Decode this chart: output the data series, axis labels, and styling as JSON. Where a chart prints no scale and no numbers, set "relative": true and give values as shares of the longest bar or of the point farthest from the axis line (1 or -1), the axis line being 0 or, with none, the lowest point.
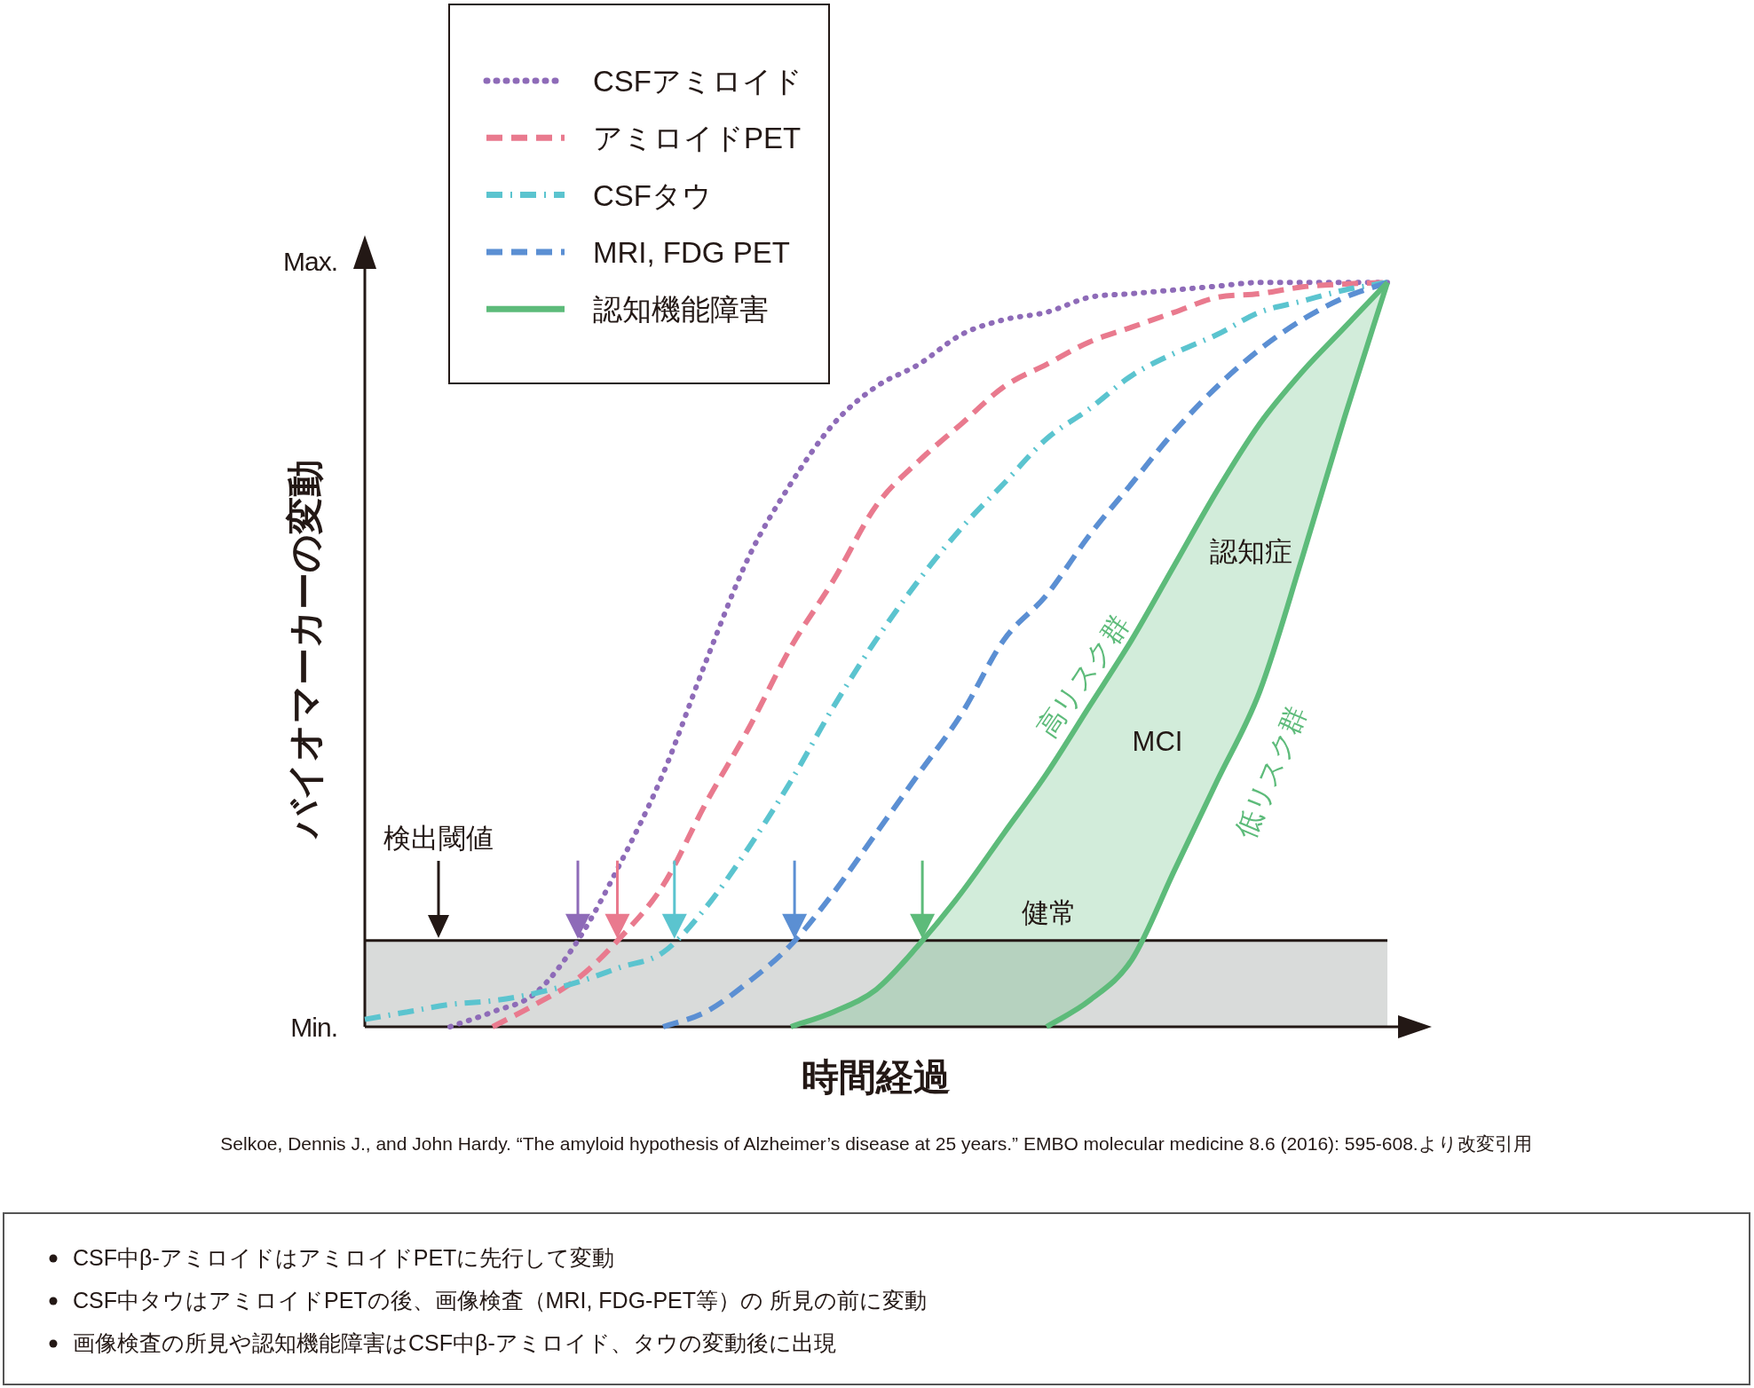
{
  "chart_data": {
    "type": "line",
    "ylabel": "バイオマーカーの変動",
    "xlabel": "時間経過",
    "categories": [
      null,
      null,
      null,
      null,
      null,
      null,
      null,
      null,
      null,
      null,
      null,
      null,
      null,
      null,
      null,
      null,
      null,
      null,
      null,
      null,
      null,
      null,
      null,
      null,
      null
    ],
    "relative": true,
    "series": [
      {
        "name": "CSFアミロイド",
        "color": "#8e6bb8",
        "line_style": "dotted",
        "values": [
          null,
          null,
          0,
          0.02,
          0.045,
          0.116,
          0.22,
          0.34,
          0.49,
          0.63,
          0.73,
          0.81,
          0.86,
          0.89,
          0.93,
          0.95,
          0.96,
          0.98,
          0.985,
          0.99,
          0.995,
          1,
          1,
          1,
          1
        ]
      },
      {
        "name": "アミロイドPET",
        "color": "#e97a8e",
        "line_style": "dashed",
        "values": [
          null,
          null,
          null,
          0,
          0.03,
          0.065,
          0.12,
          0.19,
          0.3,
          0.4,
          0.51,
          0.6,
          0.7,
          0.76,
          0.81,
          0.86,
          0.89,
          0.92,
          0.94,
          0.96,
          0.98,
          0.985,
          0.994,
          0.998,
          1
        ]
      },
      {
        "name": "CSFタウ",
        "color": "#5bc4cf",
        "line_style": "dashdot",
        "values": [
          0.01,
          0.02,
          0.03,
          0.035,
          0.045,
          0.06,
          0.08,
          0.1,
          0.16,
          0.24,
          0.33,
          0.43,
          0.52,
          0.6,
          0.67,
          0.73,
          0.79,
          0.83,
          0.875,
          0.905,
          0.93,
          0.96,
          0.975,
          0.99,
          1
        ]
      },
      {
        "name": "MRI, FDG PET",
        "color": "#5b8fd3",
        "line_style": "dashed",
        "values": [
          null,
          null,
          null,
          null,
          null,
          null,
          null,
          0,
          0.02,
          0.06,
          0.11,
          0.18,
          0.26,
          0.34,
          0.42,
          0.52,
          0.58,
          0.66,
          0.73,
          0.8,
          0.86,
          0.91,
          0.95,
          0.98,
          1
        ]
      },
      {
        "name": "認知機能障害",
        "color": "#5dbb7a",
        "line_style": "solid",
        "values": [
          null,
          null,
          null,
          null,
          null,
          null,
          null,
          null,
          null,
          null,
          0,
          0.02,
          0.05,
          0.11,
          0.18,
          0.26,
          0.34,
          0.43,
          0.52,
          0.62,
          0.72,
          0.81,
          0.88,
          0.94,
          1
        ],
        "lower": [
          null,
          null,
          null,
          null,
          null,
          null,
          null,
          null,
          null,
          null,
          0,
          0,
          0,
          0,
          0,
          0,
          0,
          0.035,
          0.09,
          0.21,
          0.33,
          0.45,
          0.63,
          0.82,
          1
        ],
        "upper": [
          null,
          null,
          null,
          null,
          null,
          null,
          null,
          null,
          null,
          null,
          0,
          0.02,
          0.05,
          0.11,
          0.18,
          0.26,
          0.34,
          0.43,
          0.52,
          0.62,
          0.72,
          0.81,
          0.88,
          0.94,
          1
        ]
      },
      {
        "color": "#5dbb7a",
        "line_style": "solid",
        "values": [
          null,
          null,
          null,
          null,
          null,
          null,
          null,
          null,
          null,
          null,
          null,
          null,
          null,
          null,
          null,
          null,
          0,
          0.035,
          0.09,
          0.21,
          0.33,
          0.45,
          0.63,
          0.82,
          1
        ]
      }
    ],
    "ref_lines": [
      {
        "axis": "y",
        "value": 0.116,
        "color": "#231815"
      }
    ],
    "bands": [
      {
        "axis": "y",
        "from": 0,
        "to": 0.116,
        "color": "#d9dbda"
      }
    ],
    "annotations": [
      "Max.",
      "Min.",
      "検出閾値",
      "認知症",
      "MCI",
      "健常",
      "高リスク群",
      "低リスク群",
      "Selkoe, Dennis J., and John Hardy. “The amyloid hypothesis of Alzheimer’s disease at 25 years.” EMBO molecular medicine 8.6 (2016): 595-608.より改変引用",
      "CSF中β-アミロイドはアミロイドPETに先行して変動",
      "CSF中タウはアミロイドPETの後、画像検査（MRI, FDG-PET等）の 所見の前に変動",
      "画像検査の所見や認知機能障害はCSF中β-アミロイド、タウの変動後に出現"
    ],
    "grid": false,
    "legend": "top",
    "marker": "none"
  }
}
